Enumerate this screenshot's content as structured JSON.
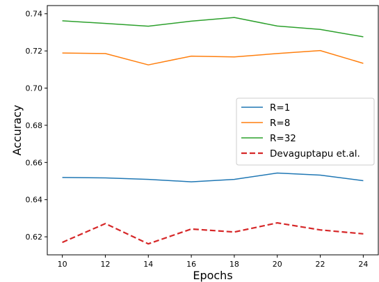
{
  "chart_data": {
    "type": "line",
    "title": "",
    "xlabel": "Epochs",
    "ylabel": "Accuracy",
    "x": [
      10,
      12,
      14,
      16,
      18,
      20,
      22,
      24
    ],
    "xticks": [
      10,
      12,
      14,
      16,
      18,
      20,
      22,
      24
    ],
    "yticks": [
      0.62,
      0.64,
      0.66,
      0.68,
      0.7,
      0.72,
      0.74
    ],
    "ytick_labels": [
      "0.62",
      "0.64",
      "0.66",
      "0.68",
      "0.70",
      "0.72",
      "0.74"
    ],
    "xlim": [
      9.3,
      24.7
    ],
    "ylim": [
      0.6103,
      0.7444
    ],
    "grid": false,
    "legend_position": "center-right",
    "series": [
      {
        "name": "R=1",
        "color": "#1f77b4",
        "dashed": false,
        "values": [
          0.6519,
          0.6517,
          0.6509,
          0.6496,
          0.6509,
          0.6543,
          0.6532,
          0.6502
        ]
      },
      {
        "name": "R=8",
        "color": "#ff7f0e",
        "dashed": false,
        "values": [
          0.7189,
          0.7186,
          0.7125,
          0.7172,
          0.7168,
          0.7186,
          0.7202,
          0.7133
        ]
      },
      {
        "name": "R=32",
        "color": "#2ca02c",
        "dashed": false,
        "values": [
          0.7362,
          0.7348,
          0.7333,
          0.736,
          0.738,
          0.7334,
          0.7316,
          0.7276
        ]
      },
      {
        "name": "Devaguptapu et.al.",
        "color": "#d62728",
        "dashed": true,
        "values": [
          0.617,
          0.6271,
          0.6162,
          0.6242,
          0.6226,
          0.6275,
          0.6237,
          0.6216
        ]
      }
    ]
  }
}
